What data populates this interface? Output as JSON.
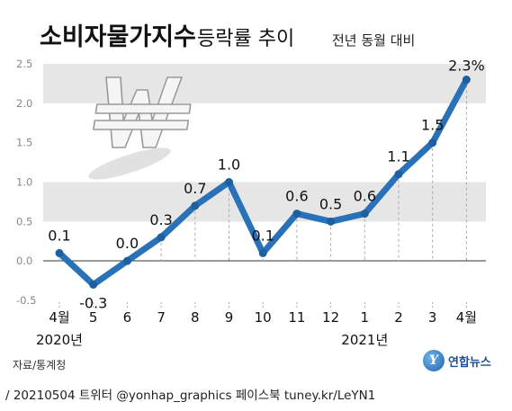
{
  "header": {
    "title": "소비자물가지수",
    "title_suffix": "등락률 추이",
    "subtitle": "전년 동월 대비"
  },
  "chart_data": {
    "type": "line",
    "title": "소비자물가지수 등락률 추이",
    "subtitle": "전년 동월 대비",
    "categories": [
      "4월",
      "5",
      "6",
      "7",
      "8",
      "9",
      "10",
      "11",
      "12",
      "1",
      "2",
      "3",
      "4월"
    ],
    "year_labels": [
      {
        "label": "2020년",
        "category_index": 0
      },
      {
        "label": "2021년",
        "category_index": 9
      }
    ],
    "values": [
      0.1,
      -0.3,
      0.0,
      0.3,
      0.7,
      1.0,
      0.1,
      0.6,
      0.5,
      0.6,
      1.1,
      1.5,
      2.3
    ],
    "value_labels": [
      "0.1",
      "-0.3",
      "0.0",
      "0.3",
      "0.7",
      "1.0",
      "0.1",
      "0.6",
      "0.5",
      "0.6",
      "1.1",
      "1.5",
      "2.3%"
    ],
    "y_ticks": [
      "2.5",
      "2.0",
      "1.5",
      "1.0",
      "0.5",
      "0.0",
      "-0.5"
    ],
    "y_tick_values": [
      2.5,
      2.0,
      1.5,
      1.0,
      0.5,
      0.0,
      -0.5
    ],
    "ylim": [
      -0.5,
      2.5
    ],
    "grid_bands": [
      [
        2.0,
        2.5
      ],
      [
        1.0,
        0.5
      ]
    ],
    "line_color": "#2a72b8",
    "band_color": "#e6e6e6",
    "decoration": "won-symbol"
  },
  "source": "자료/통계청",
  "logo": {
    "mark": "Y",
    "text": "연합뉴스"
  },
  "footer": "/ 20210504  트위터 @yonhap_graphics  페이스북 tuney.kr/LeYN1"
}
